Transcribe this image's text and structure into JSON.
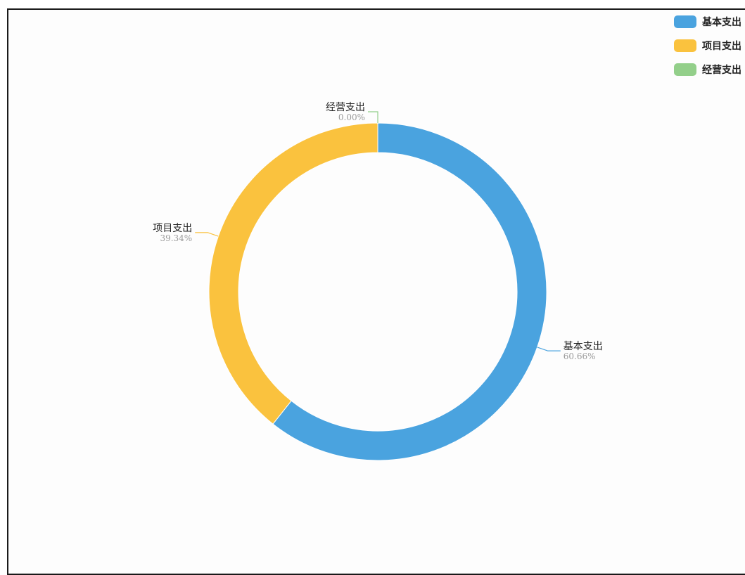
{
  "chart_data": {
    "type": "pie",
    "variant": "donut",
    "title": "",
    "legend": {
      "placement": "top-right"
    },
    "categories": [
      "基本支出",
      "项目支出",
      "经营支出"
    ],
    "values": [
      60.66,
      39.34,
      0.0
    ],
    "labels": [
      "60.66%",
      "39.34%",
      "0.00%"
    ],
    "colors": [
      "#4aa3df",
      "#fac23e",
      "#93cf8a"
    ]
  }
}
